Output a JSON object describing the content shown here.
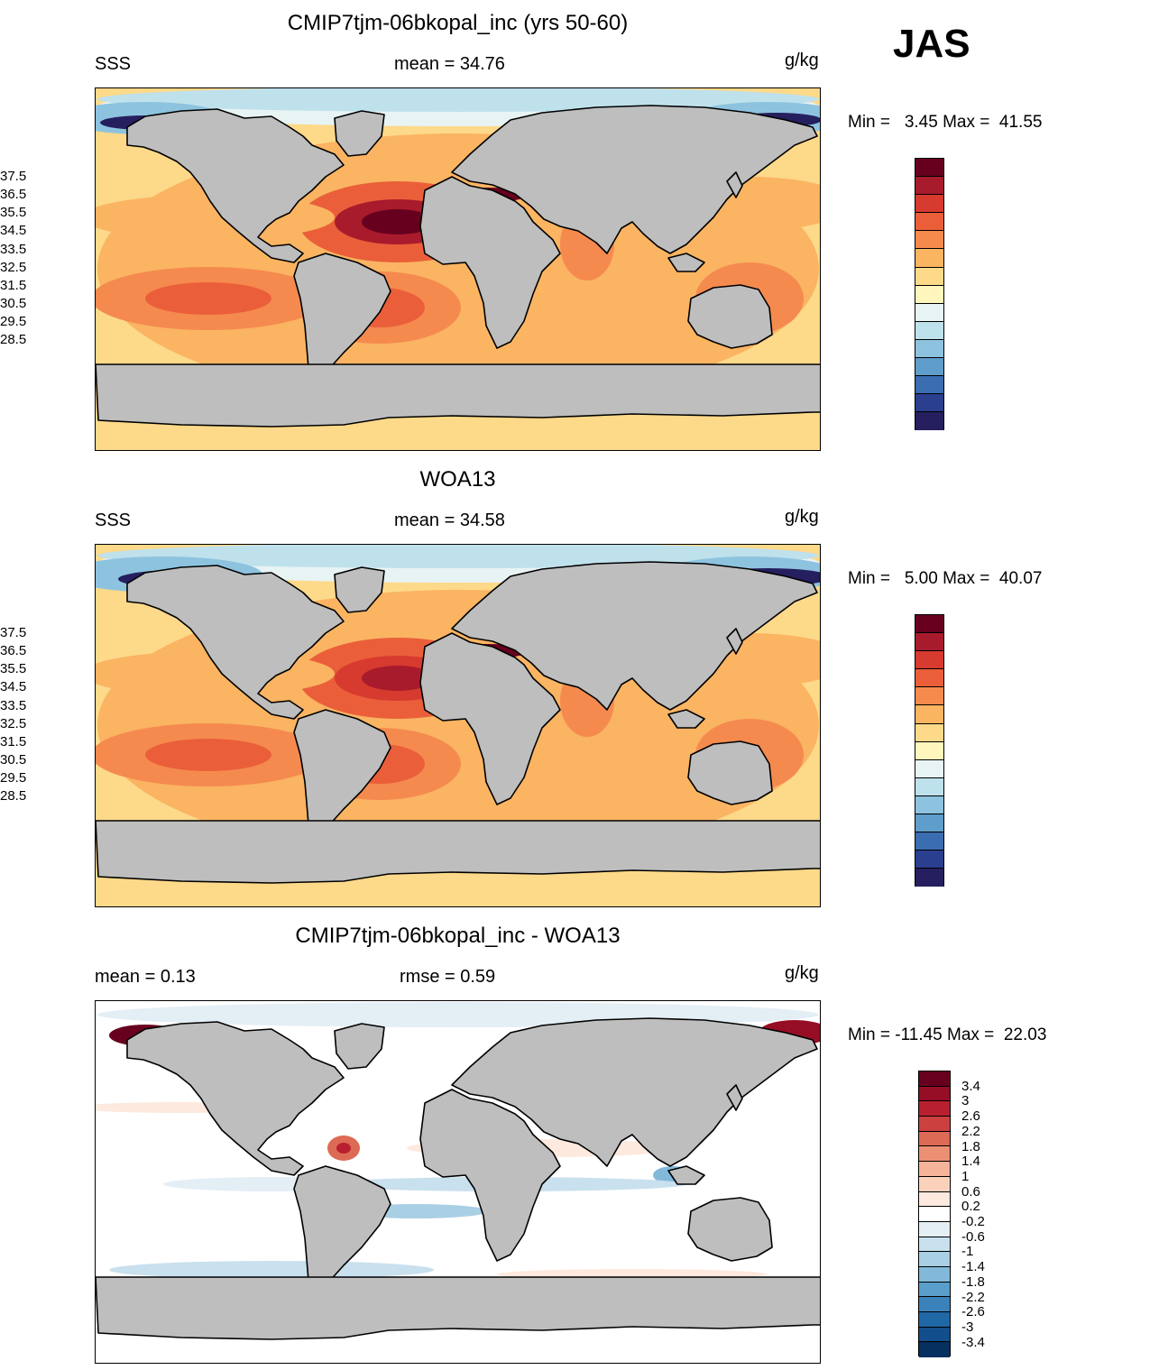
{
  "season": "JAS",
  "panels": [
    {
      "title": "CMIP7tjm-06bkopal_inc (yrs 50-60)",
      "left_label": "SSS",
      "center_label": "mean =  34.76",
      "units": "g/kg",
      "minmax": "Min =   3.45 Max =  41.55",
      "kind": "sss",
      "variant": "model"
    },
    {
      "title": "WOA13",
      "left_label": "SSS",
      "center_label": "mean =  34.58",
      "units": "g/kg",
      "minmax": "Min =   5.00 Max =  40.07",
      "kind": "sss",
      "variant": "obs"
    },
    {
      "title": "CMIP7tjm-06bkopal_inc - WOA13",
      "left_label": "mean =   0.13",
      "center_label": "rmse =   0.59",
      "units": "g/kg",
      "minmax": "Min = -11.45 Max =  22.03",
      "kind": "diff",
      "variant": "diff"
    }
  ],
  "colorbars": {
    "sss": {
      "labels": [
        "37.5",
        "36.5",
        "35.5",
        "34.5",
        "33.5",
        "32.5",
        "31.5",
        "30.5",
        "29.5",
        "28.5"
      ],
      "colors": [
        "#67001f",
        "#a81b2c",
        "#d73a2e",
        "#ea5f3a",
        "#f58a4f",
        "#fab462",
        "#fdd98a",
        "#fef6bd",
        "#e8f3f4",
        "#bfe1ec",
        "#8dc3df",
        "#5f9dcb",
        "#3b6db1",
        "#2b3f8f",
        "#251f5f"
      ]
    },
    "diff": {
      "labels": [
        "3.4",
        "3",
        "2.6",
        "2.2",
        "1.8",
        "1.4",
        "1",
        "0.6",
        "0.2",
        "-0.2",
        "-0.6",
        "-1",
        "-1.4",
        "-1.8",
        "-2.2",
        "-2.6",
        "-3",
        "-3.4"
      ],
      "colors": [
        "#67001f",
        "#960e25",
        "#b8202f",
        "#cc4140",
        "#dd6a55",
        "#ec9074",
        "#f5b39a",
        "#fad2bc",
        "#fde9dd",
        "#ffffff",
        "#e4eef5",
        "#c9e0ee",
        "#a9cfe5",
        "#82b9da",
        "#5a9ecc",
        "#3b82bb",
        "#2067a6",
        "#124e8b",
        "#05305f"
      ]
    }
  }
}
